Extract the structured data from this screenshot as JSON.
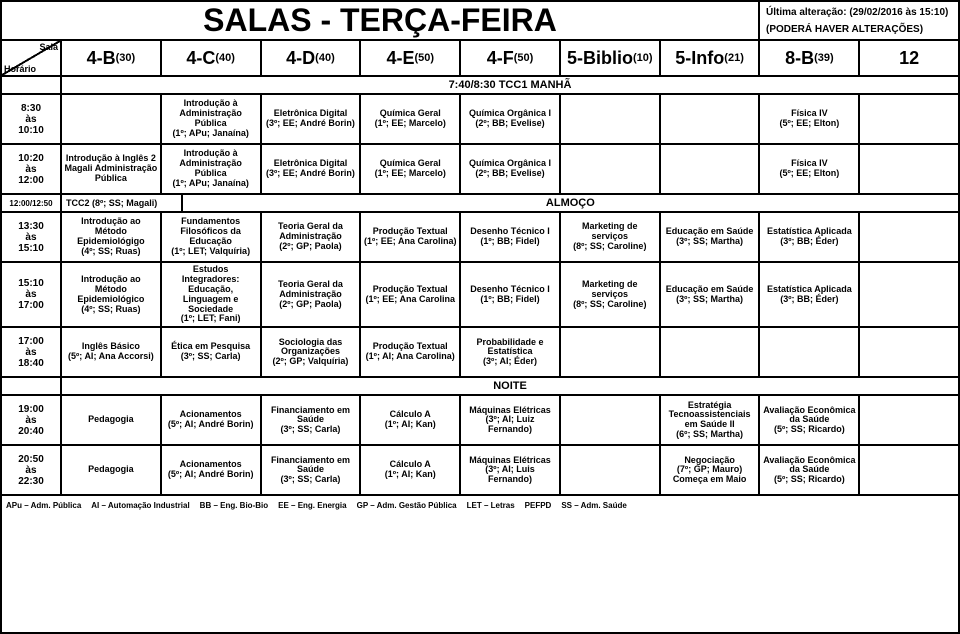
{
  "title": "SALAS - TERÇA-FEIRA",
  "meta": {
    "last_change": "Última alteração: (29/02/2016 às 15:10)",
    "disclaimer": "(PODERÁ HAVER ALTERAÇÕES)"
  },
  "corner": {
    "top": "Sala",
    "bottom": "Horário"
  },
  "columns": [
    {
      "label": "4-B",
      "cap": "(30)"
    },
    {
      "label": "4-C",
      "cap": "(40)"
    },
    {
      "label": "4-D",
      "cap": "(40)"
    },
    {
      "label": "4-E",
      "cap": "(50)"
    },
    {
      "label": "4-F",
      "cap": "(50)"
    },
    {
      "label": "5-Biblio",
      "cap": "(10)"
    },
    {
      "label": "5-Info",
      "cap": "(21)"
    },
    {
      "label": "8-B",
      "cap": "(39)"
    },
    {
      "label": "12",
      "cap": ""
    }
  ],
  "banner_tcc1": "7:40/8:30 TCC1 MANHÃ",
  "banner_almoco": "ALMOÇO",
  "banner_noite": "NOITE",
  "row_tcc2": {
    "time": "12:00/12:50",
    "text": "TCC2 (8º; SS; Magali)"
  },
  "rows": [
    {
      "time": "8:30\nàs\n10:10",
      "cells": [
        "",
        "Introdução à Administração Pública\n(1º; APu; Janaína)",
        "Eletrônica Digital\n(3º; EE; André Borin)",
        "Química Geral\n(1º; EE; Marcelo)",
        "Química Orgânica I\n(2º; BB; Evelise)",
        "",
        "",
        "Física IV\n(5º; EE; Elton)",
        ""
      ]
    },
    {
      "time": "10:20\nàs\n12:00",
      "cells": [
        "Introdução à Inglês 2\nMagali Administração Pública",
        "Introdução à Administração Pública\n(1º; APu; Janaína)",
        "Eletrônica Digital\n(3º; EE; André Borin)",
        "Química Geral\n(1º; EE; Marcelo)",
        "Química Orgânica I\n(2º; BB; Evelise)",
        "",
        "",
        "Física IV\n(5º; EE; Elton)",
        ""
      ]
    },
    {
      "time": "13:30\nàs\n15:10",
      "cells": [
        "Introdução ao Método Epidemiológigo\n(4º; SS; Ruas)",
        "Fundamentos Filosóficos da Educação\n(1º; LET; Valquíria)",
        "Teoria Geral da Administração\n(2º; GP; Paola)",
        "Produção Textual\n(1º; EE; Ana Carolina)",
        "Desenho Técnico I\n(1º; BB; Fidel)",
        "Marketing de serviços\n(8º; SS; Caroline)",
        "Educação em Saúde\n(3º; SS; Martha)",
        "Estatística Aplicada\n(3º; BB; Éder)",
        ""
      ]
    },
    {
      "time": "15:10\nàs\n17:00",
      "cells": [
        "Introdução ao Método Epidemiológico\n(4º; SS; Ruas)",
        "Estudos Integradores: Educação, Linguagem e Sociedade\n(1º; LET; Fani)",
        "Teoria Geral da Administração\n(2º; GP; Paola)",
        "Produção Textual\n(1º; EE; Ana Carolina",
        "Desenho Técnico I\n(1º; BB; Fidel)",
        "Marketing de serviços\n(8º; SS; Caroline)",
        "Educação em Saúde\n(3º; SS; Martha)",
        "Estatística Aplicada\n(3º; BB; Éder)",
        ""
      ]
    },
    {
      "time": "17:00\nàs\n18:40",
      "cells": [
        "Inglês Básico\n(5º; AI; Ana Accorsi)",
        "Ética em Pesquisa\n(3º; SS; Carla)",
        "Sociologia das Organizações\n(2º; GP; Valquíria)",
        "Produção Textual\n(1º; AI; Ana Carolina)",
        "Probabilidade e Estatística\n(3º; AI; Éder)",
        "",
        "",
        "",
        ""
      ]
    },
    {
      "time": "19:00\nàs\n20:40",
      "cells": [
        "Pedagogia",
        "Acionamentos\n(5º; AI; André Borin)",
        "Financiamento em Saúde\n(3º; SS; Carla)",
        "Cálculo A\n(1º; AI; Kan)",
        "Máquinas Elétricas\n(3º; AI; Luiz Fernando)",
        "",
        "Estratégia Tecnoassistenciais em Saúde II\n(6º; SS; Martha)",
        "Avaliação Econômica da Saúde\n(5º; SS; Ricardo)",
        ""
      ]
    },
    {
      "time": "20:50\nàs\n22:30",
      "cells": [
        "Pedagogia",
        "Acionamentos\n(5º; AI; André Borin)",
        "Financiamento em Saúde\n(3º; SS; Carla)",
        "Cálculo A\n(1º; AI; Kan)",
        "Máquinas Elétricas\n(3º; AI; Luis Fernando)",
        "",
        "Negociação\n(7º; GP; Mauro)\nComeça em Maio",
        "Avaliação Econômica da Saúde\n(5º; SS; Ricardo)",
        ""
      ]
    }
  ],
  "legend": [
    "APu – Adm. Pública",
    "AI – Automação Industrial",
    "BB – Eng. Bio-Bio",
    "EE – Eng. Energia",
    "GP – Adm. Gestão Pública",
    "LET – Letras",
    "PEFPD",
    "SS – Adm. Saúde"
  ]
}
